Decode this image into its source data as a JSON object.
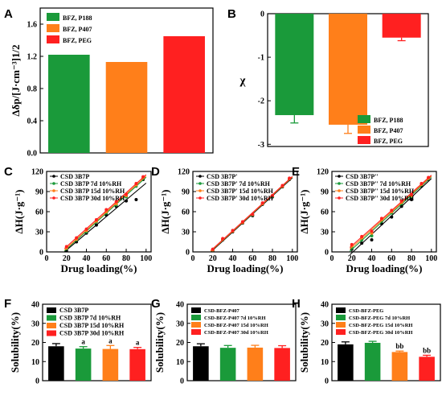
{
  "chart_data": [
    {
      "panel": "A",
      "type": "bar",
      "categories": [
        "BFZ, P188",
        "BFZ, P407",
        "BFZ, PEG"
      ],
      "values": [
        1.22,
        1.13,
        1.45
      ],
      "colors": [
        "#1a9a3a",
        "#ff7f1a",
        "#ff2020"
      ],
      "ylabel": "Δδp/[J·cm⁻³]1/2",
      "ylim": [
        0,
        1.8
      ],
      "yticks": [
        "0.0",
        "0.4",
        "0.8",
        "1.2",
        "1.6"
      ],
      "legend": [
        "BFZ, P188",
        "BFZ, P407",
        "BFZ, PEG"
      ]
    },
    {
      "panel": "B",
      "type": "bar",
      "categories": [
        "BFZ, P188",
        "BFZ, P407",
        "BFZ, PEG"
      ],
      "values": [
        -2.33,
        -2.55,
        -0.55
      ],
      "errors": [
        0.18,
        0.2,
        0.07
      ],
      "colors": [
        "#1a9a3a",
        "#ff7f1a",
        "#ff2020"
      ],
      "ylabel": "χ",
      "ylim": [
        -3.05,
        0
      ],
      "yticks": [
        "0",
        "-1",
        "-2",
        "-3"
      ],
      "legend": [
        "BFZ, P188",
        "BFZ, P407",
        "BFZ, PEG"
      ]
    },
    {
      "panel": "C",
      "type": "scatter",
      "xlabel": "Drug loading(%)",
      "ylabel": "ΔH(J·g⁻¹)",
      "xlim": [
        0,
        105
      ],
      "ylim": [
        0,
        120
      ],
      "xticks": [
        "0",
        "20",
        "40",
        "60",
        "80",
        "100"
      ],
      "yticks": [
        "0",
        "30",
        "60",
        "90",
        "120"
      ],
      "series": [
        {
          "name": "CSD 3B7P",
          "color": "#000000",
          "x": [
            20,
            30,
            40,
            50,
            60,
            70,
            80,
            90,
            97
          ],
          "y": [
            2,
            15,
            28,
            40,
            55,
            68,
            76,
            78,
            108
          ]
        },
        {
          "name": "CSD 3B7P 7d 10%RH",
          "color": "#1a9a3a",
          "x": [
            20,
            30,
            40,
            50,
            60,
            70,
            80,
            90,
            97
          ],
          "y": [
            5,
            18,
            30,
            45,
            58,
            70,
            82,
            98,
            110
          ]
        },
        {
          "name": "CSD 3B7P 15d 10%RH",
          "color": "#ff7f1a",
          "x": [
            20,
            30,
            40,
            50,
            60,
            70,
            80,
            90,
            97
          ],
          "y": [
            6,
            19,
            32,
            46,
            60,
            72,
            84,
            100,
            111
          ]
        },
        {
          "name": "CSD 3B7P 30d 10%RH",
          "color": "#ff2020",
          "x": [
            20,
            30,
            40,
            50,
            60,
            70,
            80,
            90,
            97
          ],
          "y": [
            8,
            21,
            34,
            48,
            63,
            75,
            86,
            102,
            112
          ]
        }
      ]
    },
    {
      "panel": "D",
      "type": "scatter",
      "xlabel": "Drug loading(%)",
      "ylabel": "ΔH(J·g⁻¹)",
      "xlim": [
        0,
        105
      ],
      "ylim": [
        0,
        120
      ],
      "xticks": [
        "0",
        "20",
        "40",
        "60",
        "80",
        "100"
      ],
      "yticks": [
        "0",
        "30",
        "60",
        "90",
        "120"
      ],
      "series": [
        {
          "name": "CSD 3B7P'",
          "color": "#000000",
          "x": [
            20,
            30,
            40,
            50,
            60,
            70,
            80,
            90,
            97
          ],
          "y": [
            2,
            18,
            30,
            43,
            54,
            71,
            82,
            97,
            108
          ]
        },
        {
          "name": "CSD 3B7P' 7d 10%RH",
          "color": "#1a9a3a",
          "x": [
            20,
            30,
            40,
            50,
            60,
            70,
            80,
            90,
            97
          ],
          "y": [
            3,
            19,
            31,
            44,
            55,
            72,
            83,
            98,
            109
          ]
        },
        {
          "name": "CSD 3B7P' 15d 10%RH",
          "color": "#ff7f1a",
          "x": [
            20,
            30,
            40,
            50,
            60,
            70,
            80,
            90,
            97
          ],
          "y": [
            3,
            19,
            31,
            44,
            56,
            72,
            84,
            98,
            109
          ]
        },
        {
          "name": "CSD 3B7P' 30d 10%RH",
          "color": "#ff2020",
          "x": [
            20,
            30,
            40,
            50,
            60,
            70,
            80,
            90,
            97
          ],
          "y": [
            4,
            20,
            32,
            45,
            56,
            73,
            84,
            99,
            110
          ]
        }
      ]
    },
    {
      "panel": "E",
      "type": "scatter",
      "xlabel": "Drug loading(%)",
      "ylabel": "ΔH(J·g⁻¹)",
      "xlim": [
        0,
        105
      ],
      "ylim": [
        0,
        120
      ],
      "xticks": [
        "0",
        "20",
        "40",
        "60",
        "80",
        "100"
      ],
      "yticks": [
        "0",
        "30",
        "60",
        "90",
        "120"
      ],
      "series": [
        {
          "name": "CSD 3B7P''",
          "color": "#000000",
          "x": [
            20,
            30,
            40,
            50,
            60,
            70,
            80,
            90,
            97
          ],
          "y": [
            4,
            13,
            18,
            42,
            52,
            68,
            78,
            98,
            108
          ]
        },
        {
          "name": "CSD 3B7P'' 7d 10%RH",
          "color": "#1a9a3a",
          "x": [
            20,
            30,
            40,
            50,
            60,
            70,
            80,
            90,
            97
          ],
          "y": [
            7,
            18,
            24,
            46,
            58,
            72,
            82,
            100,
            109
          ]
        },
        {
          "name": "CSD 3B7P'' 15d 10%RH",
          "color": "#ff7f1a",
          "x": [
            20,
            30,
            40,
            50,
            60,
            70,
            80,
            90,
            97
          ],
          "y": [
            9,
            21,
            28,
            48,
            60,
            74,
            84,
            101,
            110
          ]
        },
        {
          "name": "CSD 3B7P'' 30d 10%RH",
          "color": "#ff2020",
          "x": [
            20,
            30,
            40,
            50,
            60,
            70,
            80,
            90,
            97
          ],
          "y": [
            11,
            23,
            31,
            50,
            62,
            76,
            86,
            102,
            111
          ]
        }
      ]
    },
    {
      "panel": "F",
      "type": "bar",
      "categories": [
        "CSD 3B7P",
        "CSD 3B7P 7d 10%RH",
        "CSD 3B7P 15d 10%RH",
        "CSD 3B7P 30d 10%RH"
      ],
      "values": [
        18.0,
        16.8,
        16.6,
        16.5
      ],
      "errors": [
        1.4,
        1.0,
        1.8,
        0.9
      ],
      "annotations": [
        "",
        "a",
        "a",
        "a"
      ],
      "colors": [
        "#000000",
        "#1a9a3a",
        "#ff7f1a",
        "#ff2020"
      ],
      "ylabel": "Solubility(%)",
      "ylim": [
        0,
        40
      ],
      "yticks": [
        "0",
        "10",
        "20",
        "30",
        "40"
      ],
      "legend": [
        "CSD 3B7P",
        "CSD 3B7P 7d 10%RH",
        "CSD 3B7P 15d 10%RH",
        "CSD 3B7P 30d 10%RH"
      ]
    },
    {
      "panel": "G",
      "type": "bar",
      "categories": [
        "CSD-BFZ-P407",
        "CSD-BFZ-P407 7d 10%RH",
        "CSD-BFZ-P407 15d 10%RH",
        "CSD-BFZ-P407 30d 10%RH"
      ],
      "values": [
        18.0,
        17.2,
        17.3,
        17.1
      ],
      "errors": [
        1.3,
        1.2,
        1.2,
        1.2
      ],
      "annotations": [
        "",
        "",
        "",
        ""
      ],
      "colors": [
        "#000000",
        "#1a9a3a",
        "#ff7f1a",
        "#ff2020"
      ],
      "ylabel": "Solubility(%)",
      "ylim": [
        0,
        40
      ],
      "yticks": [
        "0",
        "10",
        "20",
        "30",
        "40"
      ],
      "legend": [
        "CSD-BFZ-P407",
        "CSD-BFZ-P407 7d 10%RH",
        "CSD-BFZ-P407 15d 10%RH",
        "CSD-BFZ-P407 30d 10%RH"
      ]
    },
    {
      "panel": "H",
      "type": "bar",
      "categories": [
        "CSD-BFZ-PEG",
        "CSD-BFZ-PEG 7d 10%RH",
        "CSD-BFZ-PEG 15d 10%RH",
        "CSD-BFZ-PEG 30d 10%RH"
      ],
      "values": [
        19.0,
        19.8,
        15.0,
        12.5
      ],
      "errors": [
        1.3,
        0.8,
        0.5,
        0.8
      ],
      "annotations": [
        "",
        "",
        "bb",
        "bb"
      ],
      "colors": [
        "#000000",
        "#1a9a3a",
        "#ff7f1a",
        "#ff2020"
      ],
      "ylabel": "Solubility(%)",
      "ylim": [
        0,
        40
      ],
      "yticks": [
        "0",
        "10",
        "20",
        "30",
        "40"
      ],
      "legend": [
        "CSD-BFZ-PEG",
        "CSD-BFZ-PEG 7d 10%RH",
        "CSD-BFZ-PEG 15d 10%RH",
        "CSD-BFZ-PEG 30d 10%RH"
      ]
    }
  ]
}
